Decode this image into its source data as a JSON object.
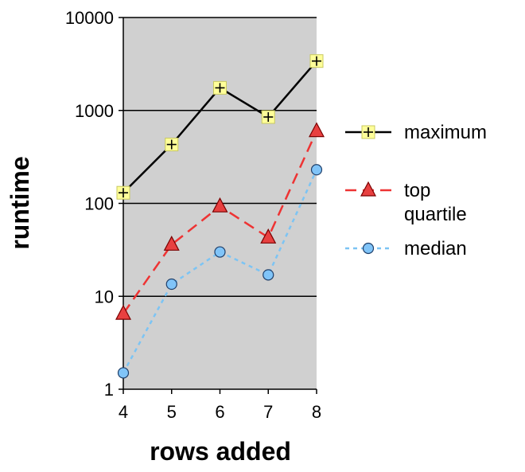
{
  "chart_data": {
    "type": "line",
    "xlabel": "rows added",
    "ylabel": "runtime",
    "x": [
      4,
      5,
      6,
      7,
      8
    ],
    "y_scale": "log",
    "ylim": [
      1,
      10000
    ],
    "y_ticks": [
      "1",
      "10",
      "100",
      "1000",
      "10000"
    ],
    "x_ticks": [
      "4",
      "5",
      "6",
      "7",
      "8"
    ],
    "grid": "horizontal major lines",
    "plot_background": "#d0d0d0",
    "legend_position": "right",
    "series": [
      {
        "name": "maximum",
        "values": [
          130,
          430,
          1750,
          850,
          3400
        ],
        "color": "#000000",
        "line_style": "solid",
        "marker": "plus-square",
        "marker_fill": "#ffff99"
      },
      {
        "name": "top quartile",
        "values": [
          6.5,
          36,
          93,
          43,
          600
        ],
        "color": "#ee3333",
        "line_style": "dashed",
        "marker": "triangle",
        "marker_fill": "#e84040"
      },
      {
        "name": "median",
        "values": [
          1.5,
          13.5,
          30,
          17,
          230
        ],
        "color": "#7cc4f4",
        "line_style": "dotted",
        "marker": "circle",
        "marker_fill": "#80c4f8"
      }
    ],
    "legend_labels": {
      "maximum": [
        "maximum"
      ],
      "top quartile": [
        "top",
        "quartile"
      ],
      "median": [
        "median"
      ]
    }
  }
}
